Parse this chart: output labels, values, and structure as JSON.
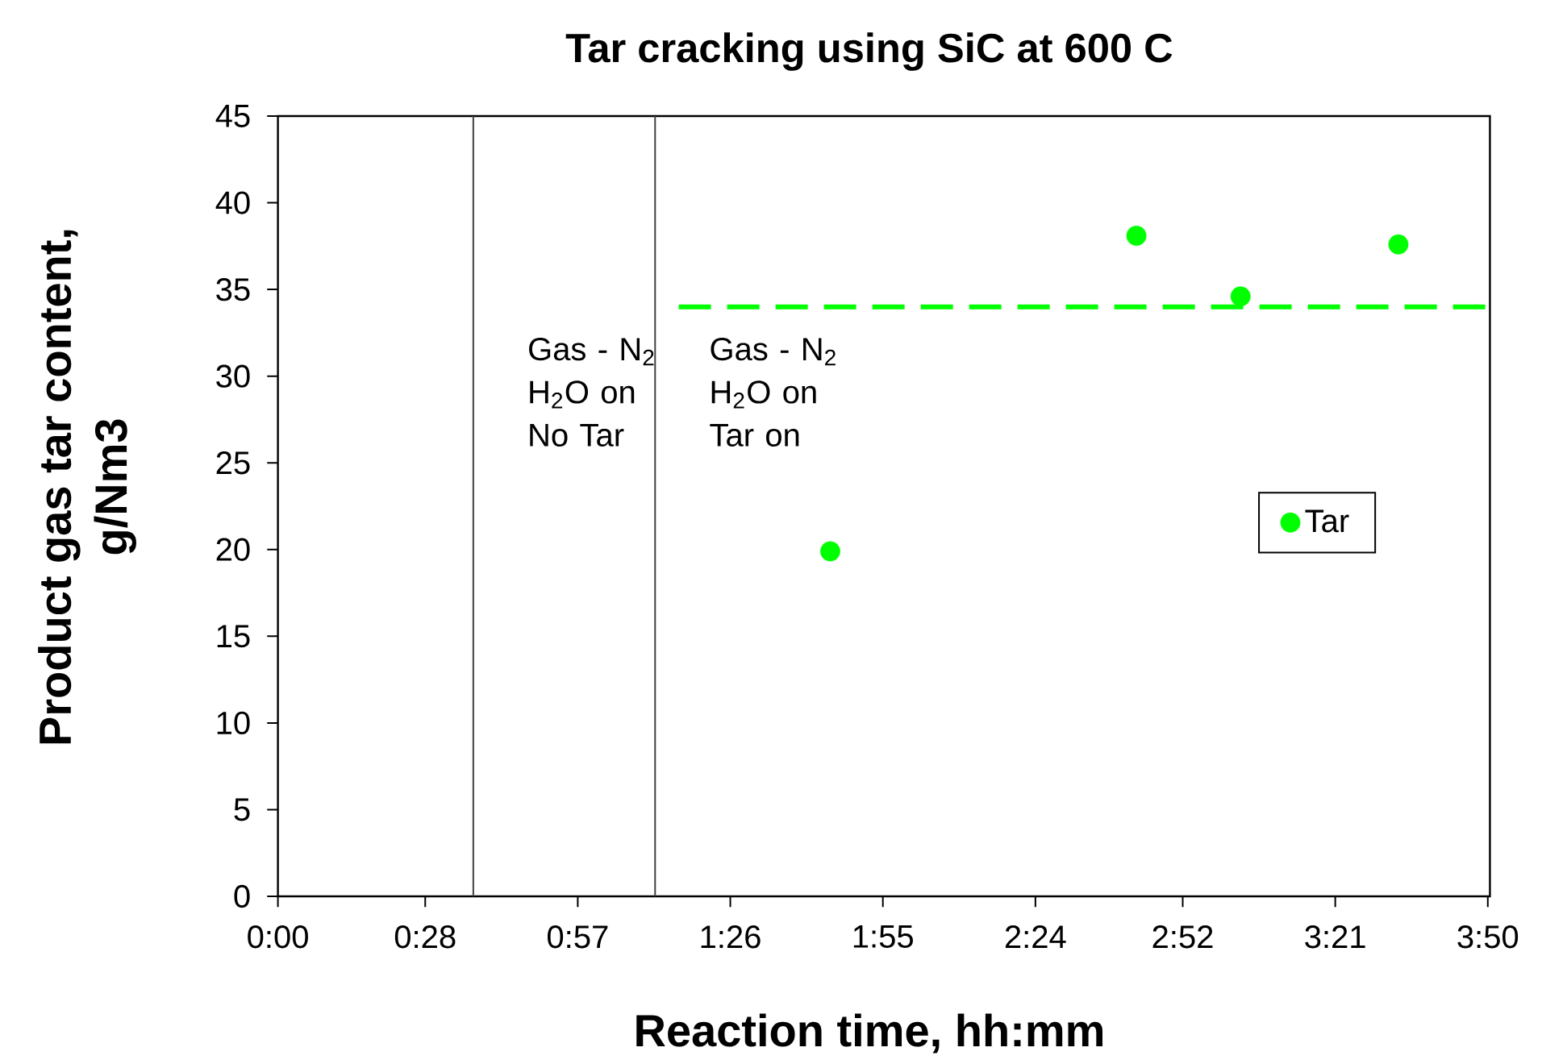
{
  "chart_data": {
    "type": "scatter",
    "title": "Tar cracking using SiC at 600 C",
    "xlabel": "Reaction time, hh:mm",
    "ylabel": "Product gas tar content, g/Nm3",
    "xlim": [
      0,
      3.84
    ],
    "xticks": [
      {
        "value": 0,
        "label": "0:00"
      },
      {
        "value": 0.4667,
        "label": "0:28"
      },
      {
        "value": 0.95,
        "label": "0:57"
      },
      {
        "value": 1.4333,
        "label": "1:26"
      },
      {
        "value": 1.9167,
        "label": "1:55"
      },
      {
        "value": 2.4,
        "label": "2:24"
      },
      {
        "value": 2.8667,
        "label": "2:52"
      },
      {
        "value": 3.35,
        "label": "3:21"
      },
      {
        "value": 3.8333,
        "label": "3:50"
      }
    ],
    "ylim": [
      0,
      45
    ],
    "yticks": [
      0,
      5,
      10,
      15,
      20,
      25,
      30,
      35,
      40,
      45
    ],
    "series": [
      {
        "name": "Tar",
        "color": "#00ff00",
        "marker": "circle",
        "x": [
          1.75,
          2.72,
          3.05,
          3.55
        ],
        "values": [
          19.9,
          38.1,
          34.6,
          37.6
        ]
      },
      {
        "type": "line",
        "color": "#00ff00",
        "line_style": "dashed",
        "x": [
          1.27,
          3.84
        ],
        "values": [
          34,
          34
        ]
      }
    ],
    "ref_lines": [
      {
        "axis": "x",
        "value": 0.619,
        "label": "Gas - N$_{2}$ H$_{2}$O on No Tar",
        "color": "#404040"
      },
      {
        "axis": "x",
        "value": 1.195,
        "label": "Gas - N$_{2}$ H$_{2}$O on Tar on",
        "color": "#404040"
      }
    ],
    "legend": "right"
  }
}
